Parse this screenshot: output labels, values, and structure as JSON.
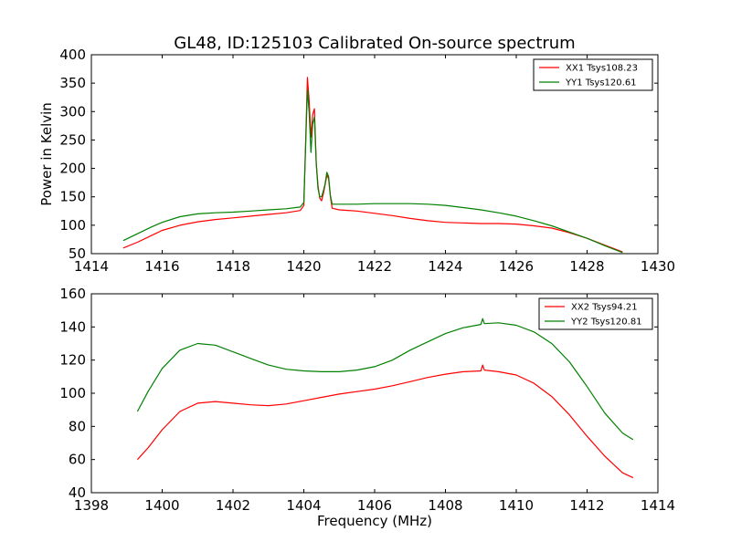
{
  "title": "GL48, ID:125103 Calibrated On-source spectrum",
  "chart_data": [
    {
      "type": "line",
      "xlim": [
        1414,
        1430
      ],
      "ylim": [
        50,
        400
      ],
      "xticks": [
        "1414",
        "1416",
        "1418",
        "1420",
        "1422",
        "1424",
        "1426",
        "1428",
        "1430"
      ],
      "yticks": [
        "50",
        "100",
        "150",
        "200",
        "250",
        "300",
        "350",
        "400"
      ],
      "xlabel": "",
      "ylabel": "Power in Kelvin",
      "legend_position": "top-right",
      "grid": false,
      "series": [
        {
          "name": "XX1 Tsys108.23",
          "color": "#ff0000",
          "x": [
            1414.9,
            1415.3,
            1415.7,
            1416.0,
            1416.5,
            1417.0,
            1417.5,
            1418.0,
            1418.5,
            1419.0,
            1419.5,
            1419.9,
            1420.0,
            1420.05,
            1420.1,
            1420.15,
            1420.2,
            1420.25,
            1420.3,
            1420.35,
            1420.4,
            1420.45,
            1420.5,
            1420.55,
            1420.6,
            1420.65,
            1420.7,
            1420.75,
            1420.8,
            1421.0,
            1421.5,
            1422.0,
            1422.5,
            1423.0,
            1423.5,
            1424.0,
            1425.0,
            1425.5,
            1426.0,
            1426.5,
            1427.0,
            1427.5,
            1428.0,
            1428.5,
            1429.0
          ],
          "y": [
            60,
            70,
            82,
            91,
            100,
            106,
            110,
            113,
            116,
            119,
            122,
            126,
            135,
            240,
            360,
            320,
            255,
            295,
            305,
            210,
            170,
            148,
            143,
            155,
            170,
            188,
            182,
            150,
            130,
            127,
            125,
            121,
            117,
            112,
            108,
            105,
            103,
            103,
            102,
            99,
            95,
            87,
            77,
            65,
            53
          ]
        },
        {
          "name": "YY1 Tsys120.61",
          "color": "#008000",
          "x": [
            1414.9,
            1415.3,
            1415.7,
            1416.0,
            1416.5,
            1417.0,
            1417.5,
            1418.0,
            1418.5,
            1419.0,
            1419.5,
            1419.9,
            1420.0,
            1420.05,
            1420.1,
            1420.15,
            1420.2,
            1420.25,
            1420.3,
            1420.35,
            1420.4,
            1420.45,
            1420.5,
            1420.55,
            1420.6,
            1420.65,
            1420.7,
            1420.75,
            1420.8,
            1421.0,
            1421.5,
            1422.0,
            1422.5,
            1423.0,
            1423.5,
            1424.0,
            1424.5,
            1425.0,
            1425.5,
            1426.0,
            1426.5,
            1427.0,
            1427.5,
            1428.0,
            1428.5,
            1429.0
          ],
          "y": [
            73,
            85,
            97,
            105,
            115,
            120,
            122,
            123,
            125,
            127,
            129,
            132,
            140,
            235,
            338,
            300,
            228,
            278,
            290,
            208,
            165,
            150,
            150,
            160,
            172,
            193,
            186,
            152,
            137,
            137,
            137,
            138,
            138,
            138,
            137,
            135,
            131,
            127,
            122,
            116,
            108,
            99,
            88,
            77,
            64,
            52
          ]
        }
      ]
    },
    {
      "type": "line",
      "xlim": [
        1398,
        1414
      ],
      "ylim": [
        40,
        160
      ],
      "xticks": [
        "1398",
        "1400",
        "1402",
        "1404",
        "1406",
        "1408",
        "1410",
        "1412",
        "1414"
      ],
      "yticks": [
        "40",
        "60",
        "80",
        "100",
        "120",
        "140",
        "160"
      ],
      "xlabel": "Frequency (MHz)",
      "ylabel": "",
      "legend_position": "top-right",
      "grid": false,
      "series": [
        {
          "name": "XX2 Tsys94.21",
          "color": "#ff0000",
          "x": [
            1399.3,
            1399.6,
            1400.0,
            1400.5,
            1401.0,
            1401.5,
            1402.0,
            1402.5,
            1403.0,
            1403.5,
            1404.0,
            1404.5,
            1405.0,
            1405.5,
            1406.0,
            1406.5,
            1407.0,
            1407.5,
            1408.0,
            1408.5,
            1409.0,
            1409.05,
            1409.1,
            1409.5,
            1410.0,
            1410.5,
            1411.0,
            1411.5,
            1412.0,
            1412.5,
            1413.0,
            1413.3
          ],
          "y": [
            60,
            67,
            78,
            89,
            94,
            95,
            94,
            93,
            92.5,
            93.5,
            95.5,
            97.5,
            99.5,
            101,
            102.5,
            104.5,
            107,
            109.5,
            111.5,
            113,
            113.5,
            117,
            114,
            113,
            111,
            106,
            98,
            87,
            74,
            62,
            52,
            49
          ]
        },
        {
          "name": "YY2 Tsys120.81",
          "color": "#008000",
          "x": [
            1399.3,
            1399.6,
            1400.0,
            1400.5,
            1401.0,
            1401.5,
            1402.0,
            1402.5,
            1403.0,
            1403.5,
            1404.0,
            1404.5,
            1405.0,
            1405.5,
            1406.0,
            1406.5,
            1407.0,
            1407.5,
            1408.0,
            1408.5,
            1409.0,
            1409.05,
            1409.1,
            1409.5,
            1410.0,
            1410.5,
            1411.0,
            1411.5,
            1412.0,
            1412.5,
            1413.0,
            1413.3
          ],
          "y": [
            89,
            101,
            115,
            126,
            130,
            129,
            125,
            121,
            117,
            114.5,
            113.5,
            113,
            113,
            114,
            116,
            120,
            126,
            131,
            136,
            139.5,
            141.5,
            145,
            142,
            142.5,
            141,
            137,
            130,
            119,
            104,
            88,
            76,
            72
          ]
        }
      ]
    }
  ]
}
